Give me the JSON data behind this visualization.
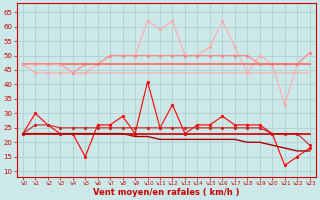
{
  "xlabel": "Vent moyen/en rafales ( km/h )",
  "background_color": "#cce8e8",
  "grid_color": "#aacccc",
  "xlim": [
    -0.5,
    23.5
  ],
  "ylim": [
    8,
    68
  ],
  "yticks": [
    10,
    15,
    20,
    25,
    30,
    35,
    40,
    45,
    50,
    55,
    60,
    65
  ],
  "xticks": [
    0,
    1,
    2,
    3,
    4,
    5,
    6,
    7,
    8,
    9,
    10,
    11,
    12,
    13,
    14,
    15,
    16,
    17,
    18,
    19,
    20,
    21,
    22,
    23
  ],
  "series": [
    {
      "label": "rafales_peak",
      "color": "#ffaaaa",
      "linewidth": 0.8,
      "marker": "o",
      "markersize": 2.0,
      "values": [
        47,
        44,
        44,
        44,
        44,
        44,
        47,
        50,
        50,
        50,
        62,
        59,
        62,
        50,
        50,
        53,
        62,
        53,
        44,
        50,
        47,
        33,
        47,
        51
      ]
    },
    {
      "label": "rafales_avg",
      "color": "#ff8888",
      "linewidth": 0.8,
      "marker": "o",
      "markersize": 2.0,
      "values": [
        47,
        47,
        47,
        47,
        44,
        47,
        47,
        50,
        50,
        50,
        50,
        50,
        50,
        50,
        50,
        50,
        50,
        50,
        50,
        47,
        47,
        47,
        47,
        51
      ]
    },
    {
      "label": "rafales_flat1",
      "color": "#ff6666",
      "linewidth": 1.2,
      "marker": null,
      "markersize": 0,
      "values": [
        47,
        47,
        47,
        47,
        47,
        47,
        47,
        47,
        47,
        47,
        47,
        47,
        47,
        47,
        47,
        47,
        47,
        47,
        47,
        47,
        47,
        47,
        47,
        47
      ]
    },
    {
      "label": "rafales_flat2",
      "color": "#ffaaaa",
      "linewidth": 0.8,
      "marker": null,
      "markersize": 0,
      "values": [
        47,
        47,
        47,
        47,
        44,
        44,
        44,
        44,
        44,
        44,
        44,
        44,
        44,
        44,
        44,
        44,
        44,
        44,
        44,
        44,
        44,
        44,
        44,
        44
      ]
    },
    {
      "label": "wind_peak",
      "color": "#ff0000",
      "linewidth": 0.8,
      "marker": "o",
      "markersize": 2.0,
      "values": [
        23,
        30,
        26,
        23,
        23,
        15,
        26,
        26,
        29,
        23,
        41,
        25,
        33,
        23,
        26,
        26,
        29,
        26,
        26,
        26,
        23,
        12,
        15,
        18
      ]
    },
    {
      "label": "wind_avg",
      "color": "#cc2222",
      "linewidth": 0.8,
      "marker": "o",
      "markersize": 2.0,
      "values": [
        23,
        26,
        26,
        25,
        25,
        25,
        25,
        25,
        25,
        25,
        25,
        25,
        25,
        25,
        25,
        25,
        25,
        25,
        25,
        25,
        23,
        23,
        23,
        19
      ]
    },
    {
      "label": "wind_flat1",
      "color": "#cc0000",
      "linewidth": 1.2,
      "marker": null,
      "markersize": 0,
      "values": [
        23,
        23,
        23,
        23,
        23,
        23,
        23,
        23,
        23,
        23,
        23,
        23,
        23,
        23,
        23,
        23,
        23,
        23,
        23,
        23,
        23,
        23,
        23,
        23
      ]
    },
    {
      "label": "wind_flat2",
      "color": "#aa0000",
      "linewidth": 1.0,
      "marker": null,
      "markersize": 0,
      "values": [
        23,
        23,
        23,
        23,
        23,
        23,
        23,
        23,
        23,
        22,
        22,
        21,
        21,
        21,
        21,
        21,
        21,
        21,
        20,
        20,
        19,
        18,
        17,
        17
      ]
    }
  ]
}
